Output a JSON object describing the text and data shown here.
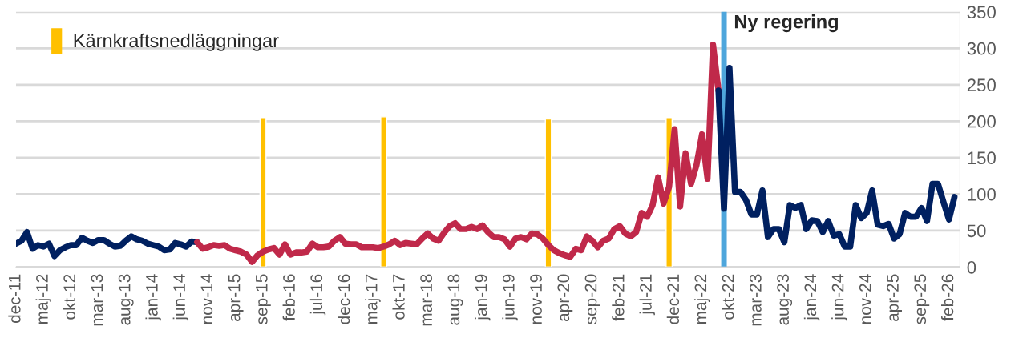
{
  "chart_data": {
    "type": "line",
    "x": [
      "2011-12",
      "2012-01",
      "2012-02",
      "2012-03",
      "2012-04",
      "2012-05",
      "2012-06",
      "2012-07",
      "2012-08",
      "2012-09",
      "2012-10",
      "2012-11",
      "2012-12",
      "2013-01",
      "2013-02",
      "2013-03",
      "2013-04",
      "2013-05",
      "2013-06",
      "2013-07",
      "2013-08",
      "2013-09",
      "2013-10",
      "2013-11",
      "2013-12",
      "2014-01",
      "2014-02",
      "2014-03",
      "2014-04",
      "2014-05",
      "2014-06",
      "2014-07",
      "2014-08",
      "2014-09",
      "2014-10",
      "2014-11",
      "2014-12",
      "2015-01",
      "2015-02",
      "2015-03",
      "2015-04",
      "2015-05",
      "2015-06",
      "2015-07",
      "2015-08",
      "2015-09",
      "2015-10",
      "2015-11",
      "2015-12",
      "2016-01",
      "2016-02",
      "2016-03",
      "2016-04",
      "2016-05",
      "2016-06",
      "2016-07",
      "2016-08",
      "2016-09",
      "2016-10",
      "2016-11",
      "2016-12",
      "2017-01",
      "2017-02",
      "2017-03",
      "2017-04",
      "2017-05",
      "2017-06",
      "2017-07",
      "2017-08",
      "2017-09",
      "2017-10",
      "2017-11",
      "2017-12",
      "2018-01",
      "2018-02",
      "2018-03",
      "2018-04",
      "2018-05",
      "2018-06",
      "2018-07",
      "2018-08",
      "2018-09",
      "2018-10",
      "2018-11",
      "2018-12",
      "2019-01",
      "2019-02",
      "2019-03",
      "2019-04",
      "2019-05",
      "2019-06",
      "2019-07",
      "2019-08",
      "2019-09",
      "2019-10",
      "2019-11",
      "2019-12",
      "2020-01",
      "2020-02",
      "2020-03",
      "2020-04",
      "2020-05",
      "2020-06",
      "2020-07",
      "2020-08",
      "2020-09",
      "2020-10",
      "2020-11",
      "2020-12",
      "2021-01",
      "2021-02",
      "2021-03",
      "2021-04",
      "2021-05",
      "2021-06",
      "2021-07",
      "2021-08",
      "2021-09",
      "2021-10",
      "2021-11",
      "2021-12",
      "2022-01",
      "2022-02",
      "2022-03",
      "2022-04",
      "2022-05",
      "2022-06",
      "2022-07",
      "2022-08",
      "2022-09",
      "2022-10",
      "2022-11",
      "2022-12",
      "2023-01",
      "2023-02",
      "2023-03",
      "2023-04",
      "2023-05",
      "2023-06",
      "2023-07",
      "2023-08",
      "2023-09",
      "2023-10",
      "2023-11",
      "2023-12",
      "2024-01",
      "2024-02",
      "2024-03",
      "2024-04",
      "2024-05",
      "2024-06",
      "2024-07",
      "2024-08",
      "2024-09",
      "2024-10",
      "2024-11",
      "2024-12",
      "2025-01",
      "2025-02",
      "2025-03",
      "2025-04",
      "2025-05",
      "2025-06",
      "2025-07",
      "2025-08",
      "2025-09",
      "2025-10",
      "2025-11",
      "2025-12",
      "2026-01",
      "2026-02",
      "2026-03"
    ],
    "series": [
      {
        "color": "#002060",
        "values": [
          32,
          36,
          48,
          25,
          30,
          28,
          32,
          15,
          23,
          27,
          30,
          30,
          40,
          36,
          33,
          37,
          37,
          32,
          28,
          29,
          36,
          42,
          38,
          36,
          32,
          30,
          28,
          23,
          24,
          33,
          31,
          28,
          35,
          34,
          null,
          null,
          null,
          null,
          null,
          null,
          null,
          null,
          null,
          null,
          null,
          null,
          null,
          null,
          null,
          null,
          null,
          null,
          null,
          null,
          null,
          null,
          null,
          null,
          null,
          null,
          null,
          null,
          null,
          null,
          null,
          null,
          null,
          null,
          null,
          null,
          null,
          null,
          null,
          null,
          null,
          null,
          null,
          null,
          null,
          null,
          null,
          null,
          null,
          null,
          null,
          null,
          null,
          null,
          null,
          null,
          null,
          null,
          null,
          null,
          null,
          null,
          null,
          null,
          null,
          null,
          null,
          null,
          null,
          null,
          null,
          null,
          null,
          null,
          null,
          null,
          null,
          null,
          null,
          null,
          null,
          null,
          null,
          null,
          null,
          null,
          null,
          null,
          null,
          null,
          null,
          null,
          null,
          null,
          null,
          null,
          null,
          null,
          null,
          null,
          null,
          null,
          null,
          null,
          null,
          null,
          null,
          null,
          null,
          null,
          null,
          null,
          null,
          null,
          null,
          null,
          null,
          null,
          null,
          null,
          null,
          null,
          null,
          null,
          null,
          null,
          null,
          null,
          null,
          null,
          null,
          null,
          null,
          null,
          null,
          null,
          null,
          null
        ]
      },
      {
        "color": "#c0294a",
        "values": [
          null,
          null,
          null,
          null,
          null,
          null,
          null,
          null,
          null,
          null,
          null,
          null,
          null,
          null,
          null,
          null,
          null,
          null,
          null,
          null,
          null,
          null,
          null,
          null,
          null,
          null,
          null,
          null,
          null,
          null,
          null,
          null,
          null,
          34,
          25,
          27,
          30,
          29,
          30,
          25,
          23,
          21,
          17,
          7,
          16,
          21,
          24,
          26,
          17,
          31,
          17,
          20,
          20,
          21,
          32,
          27,
          27,
          28,
          36,
          41,
          32,
          31,
          31,
          27,
          27,
          27,
          26,
          28,
          31,
          36,
          30,
          33,
          32,
          31,
          39,
          46,
          39,
          36,
          47,
          56,
          60,
          52,
          52,
          55,
          52,
          57,
          48,
          41,
          41,
          38,
          28,
          39,
          41,
          38,
          46,
          45,
          39,
          30,
          23,
          19,
          16,
          14,
          25,
          23,
          42,
          36,
          27,
          36,
          39,
          52,
          56,
          46,
          42,
          48,
          74,
          69,
          85,
          123,
          87,
          110,
          189,
          83,
          156,
          114,
          140,
          182,
          121,
          305,
          242,
          null,
          null,
          null,
          null,
          null,
          null,
          null,
          null,
          null,
          null,
          null,
          null,
          null,
          null,
          null,
          null,
          null,
          null,
          null,
          null,
          null,
          null,
          null,
          null,
          null,
          null,
          null,
          null,
          null,
          null,
          null,
          null,
          null,
          null,
          null,
          null,
          null,
          null,
          null,
          null,
          null,
          null,
          null
        ]
      },
      {
        "color": "#002060",
        "values": [
          null,
          null,
          null,
          null,
          null,
          null,
          null,
          null,
          null,
          null,
          null,
          null,
          null,
          null,
          null,
          null,
          null,
          null,
          null,
          null,
          null,
          null,
          null,
          null,
          null,
          null,
          null,
          null,
          null,
          null,
          null,
          null,
          null,
          null,
          null,
          null,
          null,
          null,
          null,
          null,
          null,
          null,
          null,
          null,
          null,
          null,
          null,
          null,
          null,
          null,
          null,
          null,
          null,
          null,
          null,
          null,
          null,
          null,
          null,
          null,
          null,
          null,
          null,
          null,
          null,
          null,
          null,
          null,
          null,
          null,
          null,
          null,
          null,
          null,
          null,
          null,
          null,
          null,
          null,
          null,
          null,
          null,
          null,
          null,
          null,
          null,
          null,
          null,
          null,
          null,
          null,
          null,
          null,
          null,
          null,
          null,
          null,
          null,
          null,
          null,
          null,
          null,
          null,
          null,
          null,
          null,
          null,
          null,
          null,
          null,
          null,
          null,
          null,
          null,
          null,
          null,
          null,
          null,
          null,
          null,
          null,
          null,
          null,
          null,
          null,
          null,
          null,
          null,
          242,
          80,
          273,
          103,
          103,
          92,
          72,
          72,
          105,
          41,
          52,
          52,
          34,
          85,
          81,
          85,
          52,
          64,
          63,
          48,
          63,
          43,
          45,
          28,
          28,
          85,
          67,
          74,
          105,
          58,
          56,
          59,
          39,
          45,
          74,
          69,
          69,
          81,
          63,
          114,
          114,
          89,
          65,
          96
        ]
      },
      {
        "type": "bar",
        "name": "Kärnkraftsnedläggningar",
        "color": "#ffc000",
        "x": [
          "2015-09",
          "2017-07",
          "2020-01",
          "2021-11"
        ],
        "values": [
          205,
          206,
          203,
          205
        ]
      }
    ],
    "ref_lines": [
      {
        "axis": "x",
        "value": "2022-09",
        "label": "Ny regering",
        "color": "#4ea6dc"
      }
    ],
    "xlim": [
      "2011-12",
      "2026-04"
    ],
    "xticks": [
      {
        "value": "2011-12",
        "label": "dec-11"
      },
      {
        "value": "2012-05",
        "label": "maj-12"
      },
      {
        "value": "2012-10",
        "label": "okt-12"
      },
      {
        "value": "2013-03",
        "label": "mar-13"
      },
      {
        "value": "2013-08",
        "label": "aug-13"
      },
      {
        "value": "2014-01",
        "label": "jan-14"
      },
      {
        "value": "2014-06",
        "label": "jun-14"
      },
      {
        "value": "2014-11",
        "label": "nov-14"
      },
      {
        "value": "2015-04",
        "label": "apr-15"
      },
      {
        "value": "2015-09",
        "label": "sep-15"
      },
      {
        "value": "2016-02",
        "label": "feb-16"
      },
      {
        "value": "2016-07",
        "label": "jul-16"
      },
      {
        "value": "2016-12",
        "label": "dec-16"
      },
      {
        "value": "2017-05",
        "label": "maj-17"
      },
      {
        "value": "2017-10",
        "label": "okt-17"
      },
      {
        "value": "2018-03",
        "label": "mar-18"
      },
      {
        "value": "2018-08",
        "label": "aug-18"
      },
      {
        "value": "2019-01",
        "label": "jan-19"
      },
      {
        "value": "2019-06",
        "label": "jun-19"
      },
      {
        "value": "2019-11",
        "label": "nov-19"
      },
      {
        "value": "2020-04",
        "label": "apr-20"
      },
      {
        "value": "2020-09",
        "label": "sep-20"
      },
      {
        "value": "2021-02",
        "label": "feb-21"
      },
      {
        "value": "2021-07",
        "label": "jul-21"
      },
      {
        "value": "2021-12",
        "label": "dec-21"
      },
      {
        "value": "2022-05",
        "label": "maj-22"
      },
      {
        "value": "2022-10",
        "label": "okt-22"
      },
      {
        "value": "2023-03",
        "label": "mar-23"
      },
      {
        "value": "2023-08",
        "label": "aug-23"
      },
      {
        "value": "2024-01",
        "label": "jan-24"
      },
      {
        "value": "2024-06",
        "label": "jun-24"
      },
      {
        "value": "2024-11",
        "label": "nov-24"
      },
      {
        "value": "2025-04",
        "label": "apr-25"
      },
      {
        "value": "2025-09",
        "label": "sep-25"
      },
      {
        "value": "2026-02",
        "label": "feb-26"
      }
    ],
    "ylim": [
      0,
      350
    ],
    "yticks": [
      0,
      50,
      100,
      150,
      200,
      250,
      300,
      350
    ],
    "grid": "y",
    "legend": "top left"
  }
}
